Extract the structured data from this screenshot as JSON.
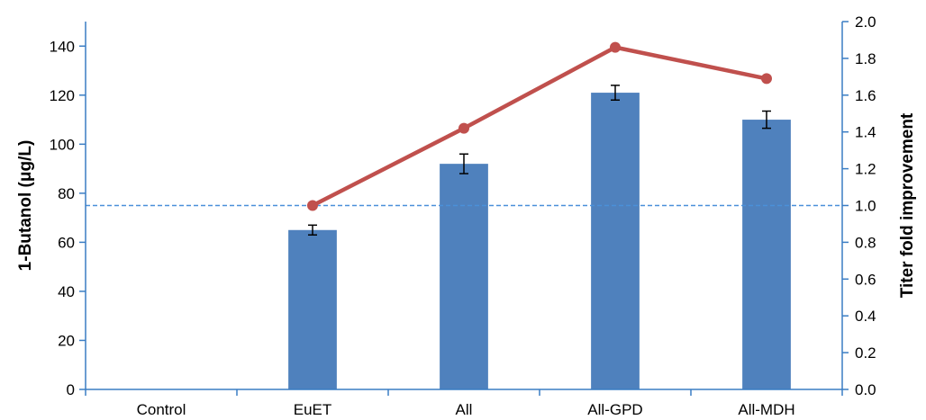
{
  "chart_data": {
    "type": "bar",
    "categories": [
      "Control",
      "EuET",
      "All",
      "All-GPD",
      "All-MDH"
    ],
    "series": [
      {
        "values": [
          0,
          65,
          92,
          121,
          110
        ],
        "error": [
          0,
          2,
          4,
          3,
          3.5
        ],
        "axis": "left"
      },
      {
        "type": "line",
        "values": [
          null,
          1.0,
          1.42,
          1.86,
          1.69
        ],
        "axis": "right"
      }
    ],
    "ylabel": "1-Butanol (μg/L)",
    "ylim": [
      0,
      150
    ],
    "yticks": [
      0,
      20,
      40,
      60,
      80,
      100,
      120,
      140
    ],
    "y2label": "Titer fold improvement",
    "y2lim": [
      0,
      2.0
    ],
    "y2ticks": [
      "0.0",
      "0.2",
      "0.4",
      "0.6",
      "0.8",
      "1.0",
      "1.2",
      "1.4",
      "1.6",
      "1.8",
      "2.0"
    ],
    "reference_line": {
      "axis": "right",
      "value": 1.0,
      "style": "dashed"
    },
    "grid": false,
    "legend": false,
    "colors": {
      "bar": "#4F81BD",
      "line": "#C0504D",
      "reference": "#4A90D9",
      "axis": "#3A7DC4"
    }
  }
}
